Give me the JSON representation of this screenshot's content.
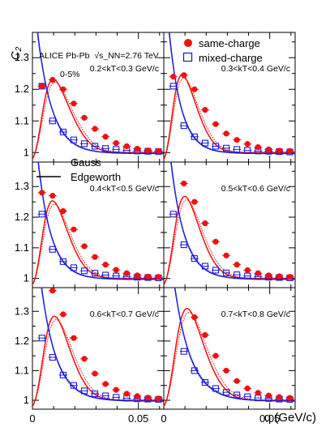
{
  "figure": {
    "experiment": "ALICE Pb-Pb",
    "energy": "√s_NN=2.76 TeV",
    "centrality": "0-5%",
    "ylabel": "C₂",
    "xlabel": "q (GeV/c)"
  },
  "legend": {
    "same_charge": "same-charge",
    "mixed_charge": "mixed-charge",
    "gauss": "Gauss",
    "edgeworth": "Edgeworth"
  },
  "colors": {
    "same": "#ee1111",
    "mixed": "#1f1fd6"
  },
  "axes": {
    "xlim": [
      0,
      0.062
    ],
    "ylim": [
      0.97,
      1.38
    ],
    "xticks": [
      "0",
      "0.05"
    ],
    "yticks": [
      "1",
      "1.1",
      "1.2",
      "1.3"
    ]
  },
  "chart_data": {
    "type": "scatter",
    "x_range": [
      0,
      0.062
    ],
    "y_range": [
      0.97,
      1.38
    ],
    "panels": [
      {
        "label": "0.2<kT<0.3 GeV/c",
        "same": [
          [
            0.0045,
            1.21
          ],
          [
            0.0095,
            1.23
          ],
          [
            0.0145,
            1.2
          ],
          [
            0.0195,
            1.155
          ],
          [
            0.0245,
            1.11
          ],
          [
            0.0295,
            1.075
          ],
          [
            0.0345,
            1.05
          ],
          [
            0.0395,
            1.03
          ],
          [
            0.0445,
            1.02
          ],
          [
            0.0495,
            1.012
          ],
          [
            0.0545,
            1.007
          ],
          [
            0.0595,
            1.005
          ]
        ],
        "mixed": [
          [
            0.0045,
            1.21
          ],
          [
            0.0095,
            1.1
          ],
          [
            0.0145,
            1.065
          ],
          [
            0.0195,
            1.04
          ],
          [
            0.0245,
            1.028
          ],
          [
            0.0295,
            1.02
          ],
          [
            0.0345,
            1.013
          ],
          [
            0.0395,
            1.01
          ],
          [
            0.0445,
            1.007
          ],
          [
            0.0495,
            1.005
          ],
          [
            0.0545,
            1.004
          ],
          [
            0.0595,
            1.003
          ]
        ],
        "fits": {
          "same_amp": 0.26,
          "same_rise": 0.0085,
          "same_peak": 0.0115,
          "same_width": 0.0135,
          "mixed_amp": 0.55,
          "mixed_scale": 0.0068
        }
      },
      {
        "label": "0.3<kT<0.4 GeV/c",
        "same": [
          [
            0.0045,
            1.24
          ],
          [
            0.0095,
            1.245
          ],
          [
            0.0145,
            1.2
          ],
          [
            0.0195,
            1.135
          ],
          [
            0.0245,
            1.09
          ],
          [
            0.0295,
            1.06
          ],
          [
            0.0345,
            1.04
          ],
          [
            0.0395,
            1.027
          ],
          [
            0.0445,
            1.017
          ],
          [
            0.0495,
            1.01
          ],
          [
            0.0545,
            1.006
          ],
          [
            0.0595,
            1.005
          ]
        ],
        "mixed": [
          [
            0.0045,
            1.21
          ],
          [
            0.0095,
            1.085
          ],
          [
            0.0145,
            1.05
          ],
          [
            0.0195,
            1.03
          ],
          [
            0.0245,
            1.02
          ],
          [
            0.0295,
            1.014
          ],
          [
            0.0345,
            1.01
          ],
          [
            0.0395,
            1.007
          ],
          [
            0.0445,
            1.005
          ],
          [
            0.0495,
            1.004
          ],
          [
            0.0545,
            1.003
          ],
          [
            0.0595,
            1.002
          ]
        ],
        "fits": {
          "same_amp": 0.275,
          "same_rise": 0.0075,
          "same_peak": 0.0105,
          "same_width": 0.0115,
          "mixed_amp": 0.6,
          "mixed_scale": 0.0058
        }
      },
      {
        "label": "0.4<kT<0.5 GeV/c",
        "same": [
          [
            0.0045,
            1.28
          ],
          [
            0.0095,
            1.27
          ],
          [
            0.0145,
            1.22
          ],
          [
            0.0195,
            1.16
          ],
          [
            0.0245,
            1.105
          ],
          [
            0.0295,
            1.07
          ],
          [
            0.0345,
            1.045
          ],
          [
            0.0395,
            1.028
          ],
          [
            0.0445,
            1.017
          ],
          [
            0.0495,
            1.01
          ],
          [
            0.0545,
            1.006
          ],
          [
            0.0595,
            1.005
          ]
        ],
        "mixed": [
          [
            0.0045,
            1.21
          ],
          [
            0.0095,
            1.095
          ],
          [
            0.0145,
            1.055
          ],
          [
            0.0195,
            1.035
          ],
          [
            0.0245,
            1.025
          ],
          [
            0.0295,
            1.017
          ],
          [
            0.0345,
            1.011
          ],
          [
            0.0395,
            1.008
          ],
          [
            0.0445,
            1.006
          ],
          [
            0.0495,
            1.004
          ],
          [
            0.0545,
            1.003
          ],
          [
            0.0595,
            1.002
          ]
        ],
        "fits": {
          "same_amp": 0.29,
          "same_rise": 0.0085,
          "same_peak": 0.011,
          "same_width": 0.0125,
          "mixed_amp": 0.6,
          "mixed_scale": 0.0062
        }
      },
      {
        "label": "0.5<kT<0.6 GeV/c",
        "same": [
          [
            0.0095,
            1.31
          ],
          [
            0.0145,
            1.25
          ],
          [
            0.0195,
            1.18
          ],
          [
            0.0245,
            1.12
          ],
          [
            0.0295,
            1.075
          ],
          [
            0.0345,
            1.045
          ],
          [
            0.0395,
            1.027
          ],
          [
            0.0445,
            1.017
          ],
          [
            0.0495,
            1.01
          ],
          [
            0.0545,
            1.007
          ],
          [
            0.0595,
            1.005
          ]
        ],
        "mixed": [
          [
            0.0045,
            1.21
          ],
          [
            0.0095,
            1.11
          ],
          [
            0.0145,
            1.065
          ],
          [
            0.0195,
            1.04
          ],
          [
            0.0245,
            1.027
          ],
          [
            0.0295,
            1.018
          ],
          [
            0.0345,
            1.012
          ],
          [
            0.0395,
            1.008
          ],
          [
            0.0445,
            1.006
          ],
          [
            0.0495,
            1.004
          ],
          [
            0.0545,
            1.003
          ],
          [
            0.0595,
            1.002
          ]
        ],
        "fits": {
          "same_amp": 0.31,
          "same_rise": 0.009,
          "same_peak": 0.0115,
          "same_width": 0.0125,
          "mixed_amp": 0.65,
          "mixed_scale": 0.0065
        }
      },
      {
        "label": "0.6<kT<0.7 GeV/c",
        "same": [
          [
            0.0095,
            1.37
          ],
          [
            0.0145,
            1.29
          ],
          [
            0.0195,
            1.21
          ],
          [
            0.0245,
            1.14
          ],
          [
            0.0295,
            1.09
          ],
          [
            0.0345,
            1.055
          ],
          [
            0.0395,
            1.035
          ],
          [
            0.0445,
            1.022
          ],
          [
            0.0495,
            1.014
          ],
          [
            0.0545,
            1.009
          ],
          [
            0.0595,
            1.006
          ]
        ],
        "mixed": [
          [
            0.0045,
            1.21
          ],
          [
            0.0095,
            1.145
          ],
          [
            0.0145,
            1.085
          ],
          [
            0.0195,
            1.05
          ],
          [
            0.0245,
            1.032
          ],
          [
            0.0295,
            1.022
          ],
          [
            0.0345,
            1.015
          ],
          [
            0.0395,
            1.01
          ],
          [
            0.0445,
            1.007
          ],
          [
            0.0495,
            1.005
          ],
          [
            0.0545,
            1.004
          ],
          [
            0.0595,
            1.003
          ]
        ],
        "fits": {
          "same_amp": 0.33,
          "same_rise": 0.0095,
          "same_peak": 0.012,
          "same_width": 0.013,
          "mixed_amp": 0.7,
          "mixed_scale": 0.0072
        }
      },
      {
        "label": "0.7<kT<0.8 GeV/c",
        "same": [
          [
            0.0145,
            1.28
          ],
          [
            0.0195,
            1.22
          ],
          [
            0.0245,
            1.15
          ],
          [
            0.0295,
            1.1
          ],
          [
            0.0345,
            1.065
          ],
          [
            0.0395,
            1.04
          ],
          [
            0.0445,
            1.025
          ],
          [
            0.0495,
            1.016
          ],
          [
            0.0545,
            1.011
          ],
          [
            0.0595,
            1.008
          ]
        ],
        "mixed": [
          [
            0.0095,
            1.165
          ],
          [
            0.0145,
            1.1
          ],
          [
            0.0195,
            1.06
          ],
          [
            0.0245,
            1.04
          ],
          [
            0.0295,
            1.027
          ],
          [
            0.0345,
            1.018
          ],
          [
            0.0395,
            1.012
          ],
          [
            0.0445,
            1.008
          ],
          [
            0.0495,
            1.006
          ],
          [
            0.0545,
            1.004
          ],
          [
            0.0595,
            1.003
          ]
        ],
        "fits": {
          "same_amp": 0.36,
          "same_rise": 0.01,
          "same_peak": 0.0125,
          "same_width": 0.014,
          "mixed_amp": 0.75,
          "mixed_scale": 0.0078
        }
      }
    ]
  }
}
